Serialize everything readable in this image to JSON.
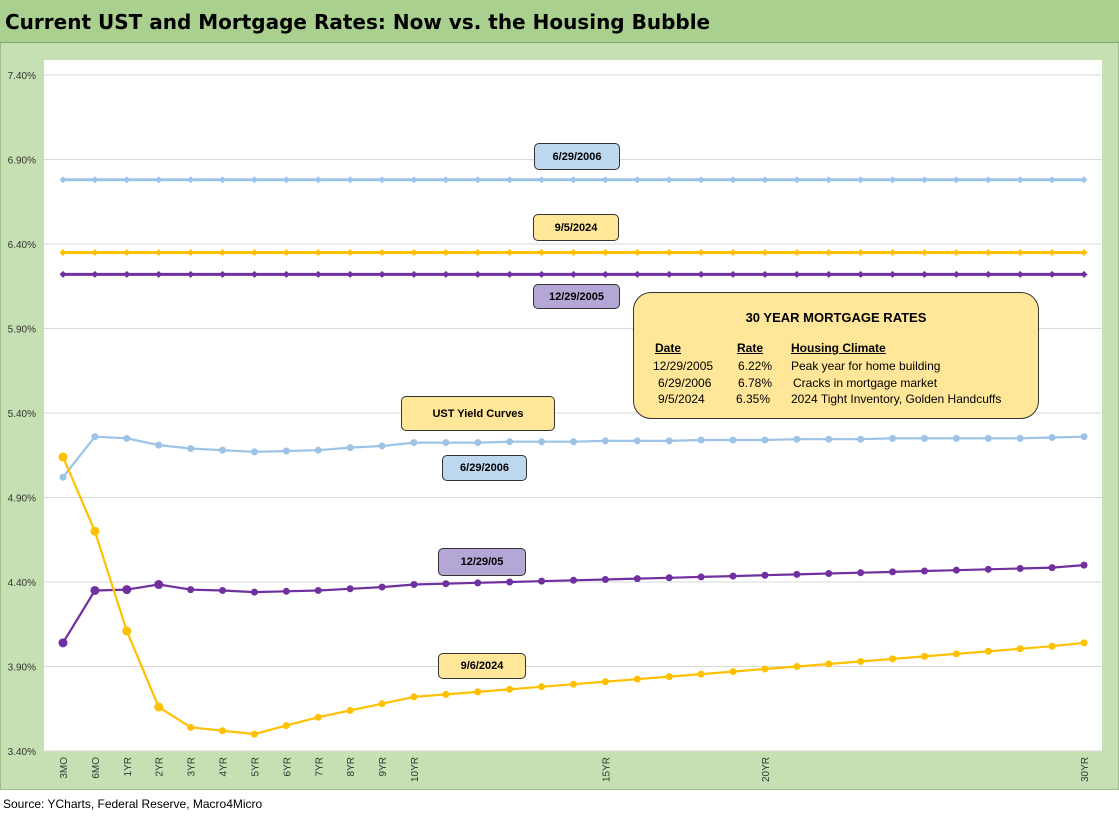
{
  "title": "Current UST and Mortgage Rates: Now vs. the Housing Bubble",
  "source": "Source: YCharts, Federal Reserve, Macro4Micro",
  "colors": {
    "ust_2006": "#9dc3e6",
    "ust_2005": "#7030a0",
    "ust_2024": "#ffc000",
    "mort_2006": "#9dc3e6",
    "mort_2024": "#ffc000",
    "mort_2005": "#7030a0",
    "label_blue": "#bdd7ee",
    "label_yellow": "#ffe699",
    "label_purple": "#b4a7d6"
  },
  "callouts": {
    "mort_2006": "6/29/2006",
    "mort_2024": "9/5/2024",
    "mort_2005": "12/29/2005",
    "ust_heading": "UST  Yield Curves",
    "ust_2006": "6/29/2006",
    "ust_2005": "12/29/05",
    "ust_2024": "9/6/2024"
  },
  "mortgage_table": {
    "title": "30 YEAR MORTGAGE RATES",
    "headers": [
      "Date",
      "Rate",
      "Housing  Climate"
    ],
    "rows": [
      [
        "12/29/2005",
        "6.22%",
        "Peak year for home building"
      ],
      [
        "6/29/2006",
        "6.78%",
        "Cracks in mortgage market"
      ],
      [
        "9/5/2024",
        "6.35%",
        "2024 Tight Inventory, Golden Handcuffs"
      ]
    ]
  },
  "chart_data": {
    "type": "line",
    "title": "Current UST and Mortgage Rates: Now vs. the Housing Bubble",
    "xlabel": "",
    "ylabel": "",
    "ylim": [
      3.4,
      7.4
    ],
    "y_ticks": [
      "3.40%",
      "3.90%",
      "4.40%",
      "4.90%",
      "5.40%",
      "5.90%",
      "6.40%",
      "6.90%",
      "7.40%"
    ],
    "tick_labels": [
      "3MO",
      "6MO",
      "1YR",
      "2YR",
      "3YR",
      "4YR",
      "5YR",
      "6YR",
      "7YR",
      "8YR",
      "9YR",
      "10YR",
      "",
      "",
      "",
      "",
      "",
      "15YR",
      "",
      "",
      "",
      "",
      "20YR",
      "",
      "",
      "",
      "",
      "",
      "",
      "",
      "",
      "",
      "30YR"
    ],
    "x_count": 33,
    "grid": "horizontal",
    "legend": "none",
    "series": [
      {
        "key": "mort_2006",
        "name": "6/29/2006",
        "kind": "flat",
        "values": [
          6.78
        ]
      },
      {
        "key": "mort_2024",
        "name": "9/5/2024",
        "kind": "flat",
        "values": [
          6.35
        ]
      },
      {
        "key": "mort_2005",
        "name": "12/29/2005",
        "kind": "flat",
        "values": [
          6.22
        ]
      },
      {
        "key": "ust_2006",
        "name": "6/29/2006",
        "kind": "curve",
        "values": [
          5.02,
          5.26,
          5.25,
          5.21,
          5.19,
          5.18,
          5.17,
          5.175,
          5.18,
          5.195,
          5.205,
          5.225,
          5.225,
          5.225,
          5.23,
          5.23,
          5.23,
          5.235,
          5.235,
          5.235,
          5.24,
          5.24,
          5.24,
          5.245,
          5.245,
          5.245,
          5.25,
          5.25,
          5.25,
          5.25,
          5.25,
          5.255,
          5.26
        ]
      },
      {
        "key": "ust_2005",
        "name": "12/29/05",
        "kind": "curve",
        "values": [
          4.04,
          4.35,
          4.355,
          4.385,
          4.355,
          4.35,
          4.34,
          4.345,
          4.35,
          4.36,
          4.37,
          4.385,
          4.39,
          4.395,
          4.4,
          4.405,
          4.41,
          4.415,
          4.42,
          4.425,
          4.43,
          4.435,
          4.44,
          4.445,
          4.45,
          4.455,
          4.46,
          4.465,
          4.47,
          4.475,
          4.48,
          4.485,
          4.5
        ]
      },
      {
        "key": "ust_2024",
        "name": "9/6/2024",
        "kind": "curve",
        "values": [
          5.14,
          4.7,
          4.11,
          3.66,
          3.54,
          3.52,
          3.5,
          3.55,
          3.6,
          3.64,
          3.68,
          3.72,
          3.735,
          3.75,
          3.765,
          3.78,
          3.795,
          3.81,
          3.825,
          3.84,
          3.855,
          3.87,
          3.885,
          3.9,
          3.915,
          3.93,
          3.945,
          3.96,
          3.975,
          3.99,
          4.005,
          4.02,
          4.04
        ]
      }
    ]
  }
}
